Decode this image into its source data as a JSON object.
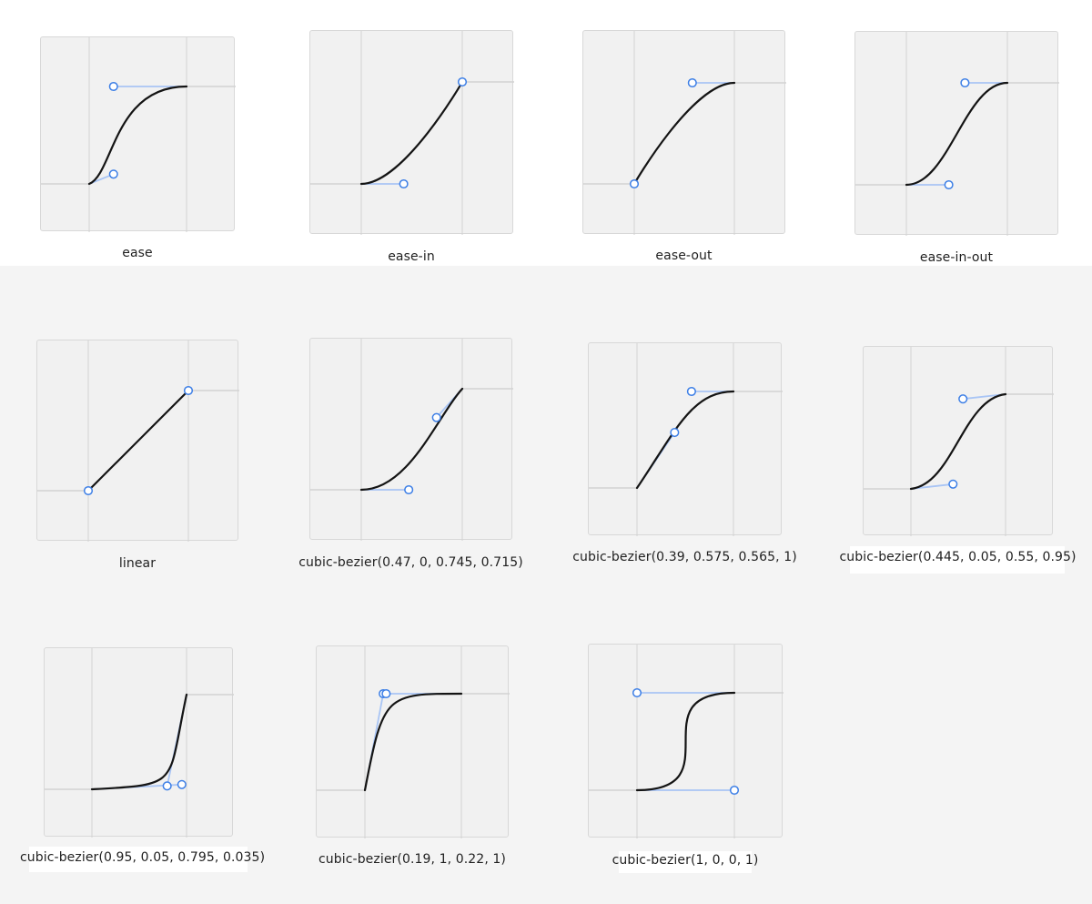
{
  "colors": {
    "curve": "#141414",
    "handle_line": "#a9c5f5",
    "handle_point": "#3d7fe6",
    "grid_line": "#d2d2d2",
    "card_bg": "#f1f1f1"
  },
  "curves": [
    {
      "id": "ease",
      "label": "ease",
      "bezier": [
        0.25,
        0.1,
        0.25,
        1
      ]
    },
    {
      "id": "ease-in",
      "label": "ease-in",
      "bezier": [
        0.42,
        0,
        1,
        1
      ]
    },
    {
      "id": "ease-out",
      "label": "ease-out",
      "bezier": [
        0,
        0,
        0.58,
        1
      ]
    },
    {
      "id": "ease-in-out",
      "label": "ease-in-out",
      "bezier": [
        0.42,
        0,
        0.58,
        1
      ]
    },
    {
      "id": "linear",
      "label": "linear",
      "bezier": [
        0,
        0,
        1,
        1
      ]
    },
    {
      "id": "cb-1",
      "label": "cubic-bezier(0.47, 0, 0.745, 0.715)",
      "bezier": [
        0.47,
        0,
        0.745,
        0.715
      ]
    },
    {
      "id": "cb-2",
      "label": "cubic-bezier(0.39, 0.575, 0.565, 1)",
      "bezier": [
        0.39,
        0.575,
        0.565,
        1
      ]
    },
    {
      "id": "cb-3",
      "label": "cubic-bezier(0.445, 0.05, 0.55, 0.95)",
      "bezier": [
        0.445,
        0.05,
        0.55,
        0.95
      ]
    },
    {
      "id": "cb-4",
      "label": "cubic-bezier(0.95, 0.05, 0.795, 0.035)",
      "bezier": [
        0.95,
        0.05,
        0.795,
        0.035
      ]
    },
    {
      "id": "cb-5",
      "label": "cubic-bezier(0.19, 1, 0.22, 1)",
      "bezier": [
        0.19,
        1,
        0.22,
        1
      ]
    },
    {
      "id": "cb-6",
      "label": "cubic-bezier(1, 0, 0, 1)",
      "bezier": [
        1,
        0,
        0,
        1
      ]
    }
  ]
}
